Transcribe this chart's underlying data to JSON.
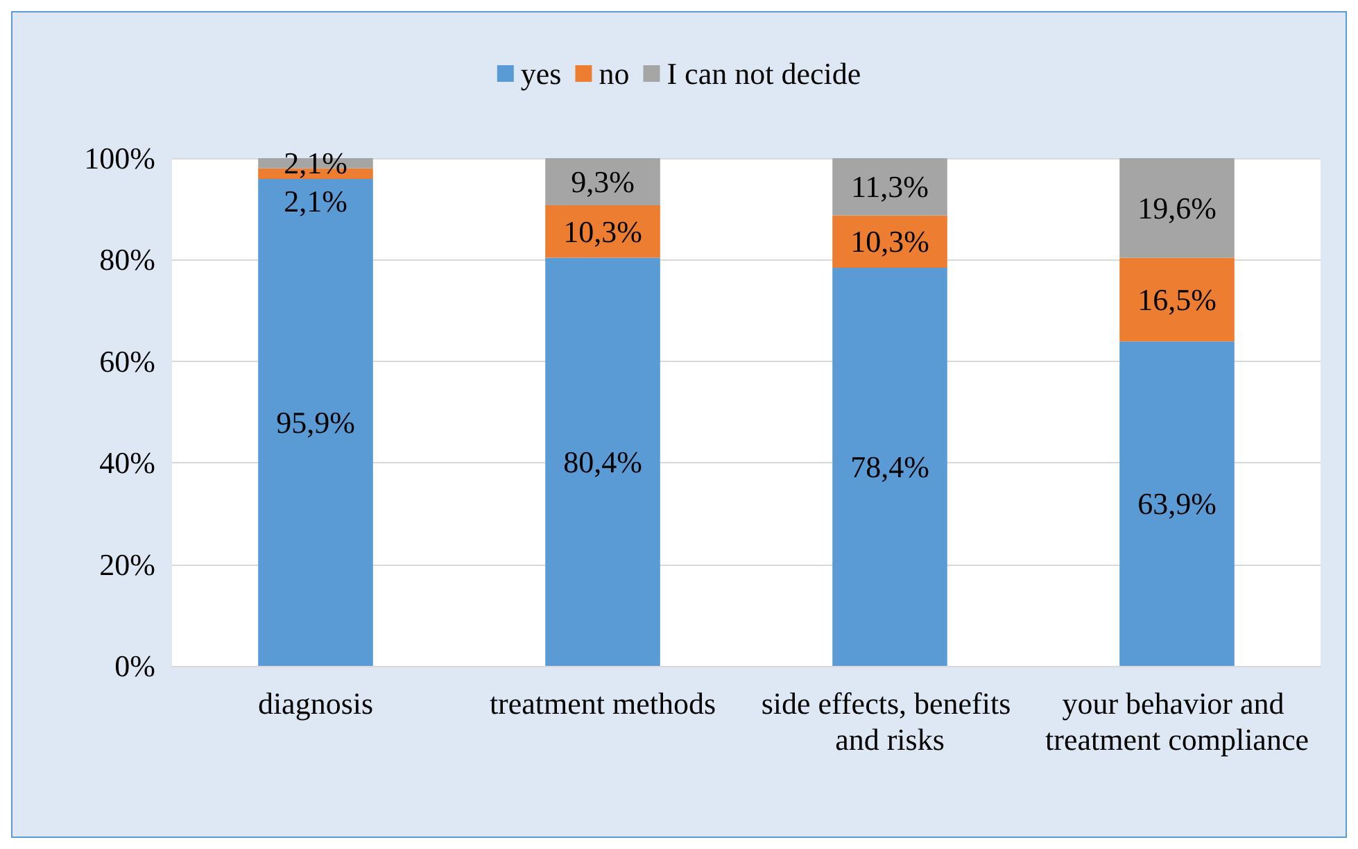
{
  "chart_data": {
    "type": "bar",
    "stacked": true,
    "categories": [
      "diagnosis",
      "treatment methods",
      "side effects, benefits and risks",
      "your behavior and treatment compliance"
    ],
    "series": [
      {
        "name": "yes",
        "color": "#5b9bd5",
        "values": [
          95.9,
          80.4,
          78.4,
          63.9
        ],
        "value_labels": [
          "95,9%",
          "80,4%",
          "78,4%",
          "63,9%"
        ]
      },
      {
        "name": "no",
        "color": "#ed7d31",
        "values": [
          2.1,
          10.3,
          10.3,
          16.5
        ],
        "value_labels": [
          "2,1%",
          "10,3%",
          "10,3%",
          "16,5%"
        ]
      },
      {
        "name": "I can not decide",
        "color": "#a5a5a5",
        "values": [
          2.1,
          9.3,
          11.3,
          19.6
        ],
        "value_labels": [
          "2,1%",
          "9,3%",
          "11,3%",
          "19,6%"
        ]
      }
    ],
    "ylim": [
      0,
      100
    ],
    "yticks": [
      {
        "value": 0,
        "label": "0%"
      },
      {
        "value": 20,
        "label": "20%"
      },
      {
        "value": 40,
        "label": "40%"
      },
      {
        "value": 60,
        "label": "60%"
      },
      {
        "value": 80,
        "label": "80%"
      },
      {
        "value": 100,
        "label": "100%"
      }
    ],
    "grid": "y",
    "legend": "top"
  }
}
